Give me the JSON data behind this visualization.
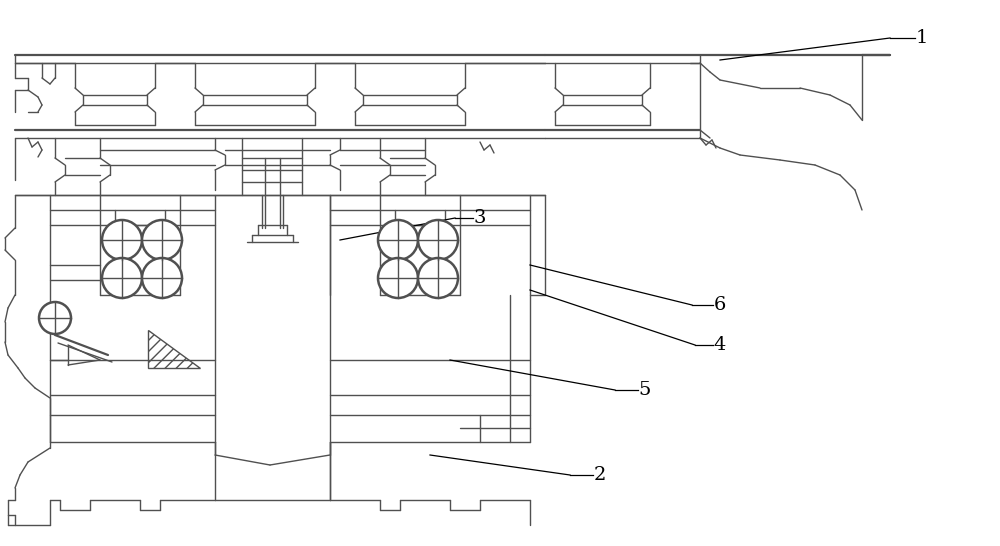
{
  "bg_color": "#ffffff",
  "lc": "#505050",
  "lw": 1.0,
  "lwt": 1.6,
  "lwc": 1.8
}
